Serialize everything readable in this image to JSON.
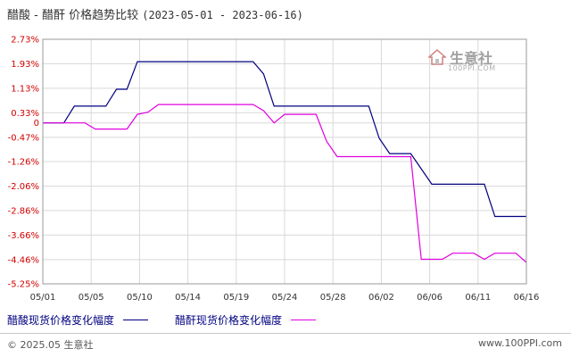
{
  "header": {
    "title": "醋酸 - 醋酐 价格趋势比较",
    "date_range": "(2023-05-01 - 2023-06-16)"
  },
  "watermark": {
    "brand": "生意社",
    "url": "100PPI.COM",
    "icon": "house-icon"
  },
  "legend": {
    "items": [
      {
        "label": "醋酸现货价格变化幅度",
        "color": "#000080"
      },
      {
        "label": "醋酐现货价格变化幅度",
        "color": "#e000e0"
      }
    ]
  },
  "footer": {
    "copyright": "© 2025.05 生意社",
    "site": "www.100PPI.com"
  },
  "chart_data": {
    "type": "line",
    "x_ticks": [
      "05/01",
      "05/05",
      "05/10",
      "05/14",
      "05/19",
      "05/24",
      "05/28",
      "06/02",
      "06/06",
      "06/11",
      "06/16"
    ],
    "y_ticks": [
      "2.73%",
      "1.93%",
      "1.13%",
      "0.33%",
      "0",
      "-0.47%",
      "-1.26%",
      "-2.06%",
      "-2.86%",
      "-3.66%",
      "-4.46%",
      "-5.25%"
    ],
    "ylim": [
      -5.25,
      2.73
    ],
    "grid": true,
    "legend_position": "bottom",
    "series": [
      {
        "name": "醋酸现货价格变化幅度",
        "color": "#000080",
        "points": [
          [
            "2023-05-01",
            0
          ],
          [
            "2023-05-03",
            0
          ],
          [
            "2023-05-04",
            0.55
          ],
          [
            "2023-05-07",
            0.55
          ],
          [
            "2023-05-08",
            1.1
          ],
          [
            "2023-05-09",
            1.1
          ],
          [
            "2023-05-10",
            2.0
          ],
          [
            "2023-05-21",
            2.0
          ],
          [
            "2023-05-22",
            1.6
          ],
          [
            "2023-05-23",
            0.55
          ],
          [
            "2023-06-01",
            0.55
          ],
          [
            "2023-06-02",
            -0.5
          ],
          [
            "2023-06-03",
            -1.0
          ],
          [
            "2023-06-05",
            -1.0
          ],
          [
            "2023-06-07",
            -2.0
          ],
          [
            "2023-06-12",
            -2.0
          ],
          [
            "2023-06-13",
            -3.05
          ],
          [
            "2023-06-16",
            -3.05
          ]
        ]
      },
      {
        "name": "醋酐现货价格变化幅度",
        "color": "#e000e0",
        "points": [
          [
            "2023-05-01",
            0
          ],
          [
            "2023-05-05",
            0
          ],
          [
            "2023-05-06",
            -0.2
          ],
          [
            "2023-05-09",
            -0.2
          ],
          [
            "2023-05-10",
            0.28
          ],
          [
            "2023-05-11",
            0.35
          ],
          [
            "2023-05-12",
            0.6
          ],
          [
            "2023-05-21",
            0.6
          ],
          [
            "2023-05-22",
            0.4
          ],
          [
            "2023-05-23",
            0.0
          ],
          [
            "2023-05-24",
            0.28
          ],
          [
            "2023-05-27",
            0.28
          ],
          [
            "2023-05-28",
            -0.6
          ],
          [
            "2023-05-29",
            -1.1
          ],
          [
            "2023-06-05",
            -1.1
          ],
          [
            "2023-06-06",
            -4.45
          ],
          [
            "2023-06-08",
            -4.45
          ],
          [
            "2023-06-09",
            -4.25
          ],
          [
            "2023-06-11",
            -4.25
          ],
          [
            "2023-06-12",
            -4.45
          ],
          [
            "2023-06-13",
            -4.25
          ],
          [
            "2023-06-15",
            -4.25
          ],
          [
            "2023-06-16",
            -4.55
          ]
        ]
      }
    ]
  }
}
